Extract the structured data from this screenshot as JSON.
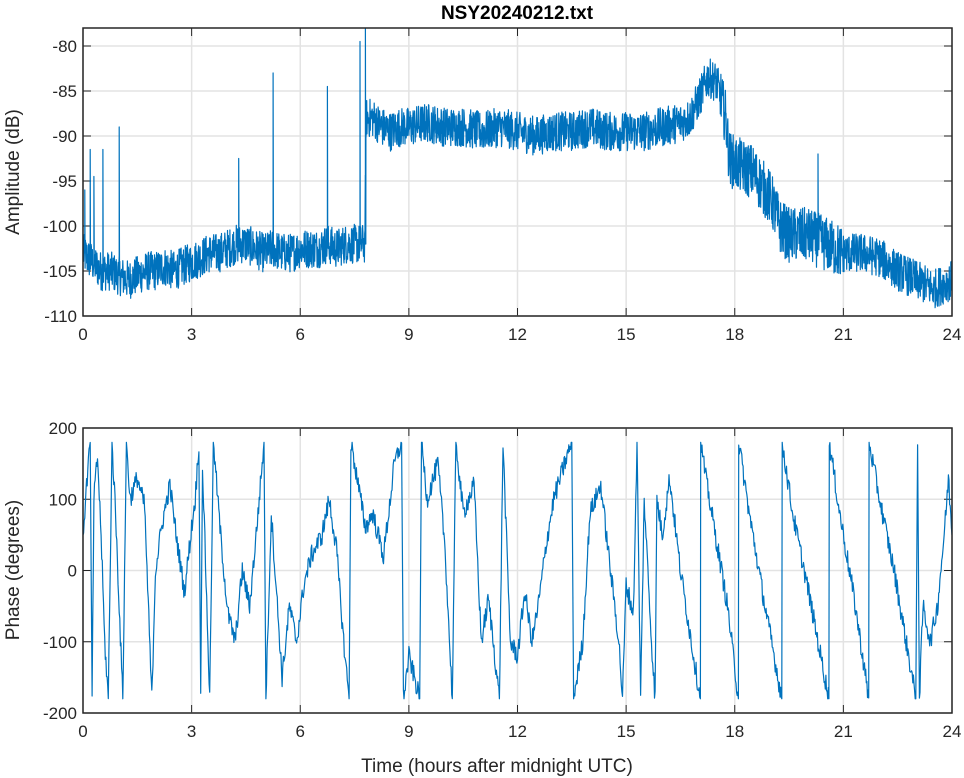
{
  "chart_data": [
    {
      "type": "line",
      "title": "NSY20240212.txt",
      "xlabel": "",
      "ylabel": "Amplitude (dB)",
      "xlim": [
        0,
        24
      ],
      "ylim": [
        -110,
        -78
      ],
      "xticks": [
        "0",
        "3",
        "6",
        "9",
        "12",
        "15",
        "18",
        "21",
        "24"
      ],
      "yticks": [
        "-80",
        "-85",
        "-90",
        "-95",
        "-100",
        "-105",
        "-110"
      ],
      "grid": true,
      "series_color": "#0072bd",
      "x": [
        0,
        0.25,
        0.5,
        0.75,
        1,
        1.25,
        1.5,
        1.75,
        2,
        2.25,
        2.5,
        2.75,
        3,
        3.25,
        3.5,
        3.75,
        4,
        4.25,
        4.5,
        4.75,
        5,
        5.25,
        5.5,
        5.75,
        6,
        6.25,
        6.5,
        6.75,
        7,
        7.25,
        7.5,
        7.78,
        7.82,
        8,
        8.25,
        8.5,
        8.75,
        9,
        9.5,
        10,
        10.5,
        11,
        11.5,
        12,
        12.5,
        13,
        13.5,
        14,
        14.5,
        15,
        15.5,
        16,
        16.5,
        16.75,
        17,
        17.25,
        17.5,
        17.75,
        17.85,
        18,
        18.5,
        19,
        19.25,
        19.5,
        20,
        20.5,
        21,
        21.5,
        22,
        22.5,
        23,
        23.5,
        24
      ],
      "y": [
        -103,
        -104,
        -105,
        -105,
        -105.5,
        -106,
        -105.5,
        -105,
        -105,
        -104.5,
        -105,
        -104.5,
        -104,
        -103.5,
        -103,
        -103,
        -102.5,
        -102,
        -102,
        -102.5,
        -103,
        -102.5,
        -103,
        -103,
        -102.5,
        -102.5,
        -102.5,
        -102,
        -102.5,
        -102,
        -102,
        -102,
        -88,
        -88,
        -89,
        -89.5,
        -89,
        -89,
        -88.5,
        -89,
        -89,
        -89.5,
        -89,
        -89.5,
        -90,
        -89.5,
        -89.5,
        -89,
        -89.5,
        -89.5,
        -89.5,
        -89,
        -88.5,
        -88,
        -86,
        -83.5,
        -84,
        -88,
        -92.5,
        -93,
        -94,
        -97,
        -100,
        -101,
        -101,
        -102,
        -103,
        -103,
        -103.5,
        -105,
        -106,
        -107,
        -106
      ],
      "spikes": [
        [
          0.05,
          -96
        ],
        [
          0.2,
          -91.5
        ],
        [
          0.3,
          -94.5
        ],
        [
          0.55,
          -91.5
        ],
        [
          1.0,
          -89
        ],
        [
          4.3,
          -92.5
        ],
        [
          5.25,
          -83
        ],
        [
          6.75,
          -84.5
        ],
        [
          7.65,
          -79.5
        ],
        [
          7.8,
          -78
        ],
        [
          20.3,
          -92
        ]
      ]
    },
    {
      "type": "line",
      "title": "",
      "xlabel": "Time (hours after midnight UTC)",
      "ylabel": "Phase (degrees)",
      "xlim": [
        0,
        24
      ],
      "ylim": [
        -200,
        200
      ],
      "xticks": [
        "0",
        "3",
        "6",
        "9",
        "12",
        "15",
        "18",
        "21",
        "24"
      ],
      "yticks": [
        "200",
        "100",
        "0",
        "-100",
        "-200"
      ],
      "grid": true,
      "series_color": "#0072bd",
      "x": [
        0,
        0.1,
        0.2,
        0.25,
        0.3,
        0.4,
        0.5,
        0.6,
        0.7,
        0.8,
        0.9,
        1.0,
        1.1,
        1.2,
        1.3,
        1.5,
        1.7,
        1.9,
        2.0,
        2.2,
        2.4,
        2.6,
        2.8,
        3.0,
        3.1,
        3.2,
        3.25,
        3.3,
        3.5,
        3.6,
        3.8,
        4.0,
        4.2,
        4.4,
        4.6,
        4.8,
        5.0,
        5.05,
        5.2,
        5.5,
        5.7,
        5.9,
        6.1,
        6.3,
        6.6,
        6.8,
        7.0,
        7.2,
        7.35,
        7.4,
        7.6,
        7.8,
        8.0,
        8.3,
        8.6,
        8.8,
        8.85,
        9.0,
        9.3,
        9.35,
        9.5,
        9.8,
        10.0,
        10.2,
        10.3,
        10.5,
        10.8,
        11.0,
        11.2,
        11.5,
        11.6,
        11.8,
        12.0,
        12.2,
        12.4,
        12.6,
        12.8,
        13.0,
        13.3,
        13.5,
        13.55,
        13.8,
        14.0,
        14.3,
        14.5,
        14.8,
        14.9,
        15.0,
        15.2,
        15.3,
        15.4,
        15.5,
        15.7,
        15.8,
        15.85,
        16.0,
        16.2,
        16.5,
        16.8,
        17.05,
        17.06,
        17.2,
        17.5,
        17.8,
        18.1,
        18.11,
        18.4,
        18.8,
        19.3,
        19.31,
        19.6,
        20.0,
        20.3,
        20.6,
        20.61,
        20.9,
        21.3,
        21.7,
        21.71,
        22.0,
        22.4,
        22.8,
        23.0,
        23.05,
        23.1,
        23.2,
        23.4,
        23.6,
        23.8,
        23.9,
        24.0
      ],
      "y": [
        50,
        120,
        180,
        -180,
        100,
        160,
        50,
        -100,
        -180,
        180,
        80,
        -50,
        -180,
        180,
        100,
        130,
        90,
        -180,
        0,
        70,
        120,
        40,
        -30,
        60,
        100,
        180,
        -180,
        150,
        -180,
        180,
        50,
        -60,
        -100,
        0,
        -50,
        60,
        180,
        -180,
        80,
        -150,
        -50,
        -100,
        -20,
        20,
        50,
        100,
        30,
        -100,
        -180,
        180,
        120,
        60,
        80,
        20,
        150,
        180,
        -180,
        -120,
        -180,
        180,
        100,
        150,
        30,
        -180,
        180,
        80,
        120,
        -100,
        -40,
        -180,
        180,
        -100,
        -120,
        -30,
        -100,
        -40,
        40,
        100,
        150,
        180,
        -180,
        -100,
        80,
        120,
        30,
        -100,
        -180,
        -20,
        -60,
        180,
        -180,
        100,
        -100,
        -180,
        100,
        50,
        130,
        0,
        -100,
        -180,
        180,
        130,
        40,
        -50,
        -180,
        180,
        80,
        -40,
        -180,
        180,
        80,
        -20,
        -100,
        -180,
        180,
        80,
        -40,
        -180,
        180,
        100,
        0,
        -120,
        -180,
        180,
        -180,
        -50,
        -100,
        -50,
        60,
        130,
        50
      ]
    }
  ]
}
